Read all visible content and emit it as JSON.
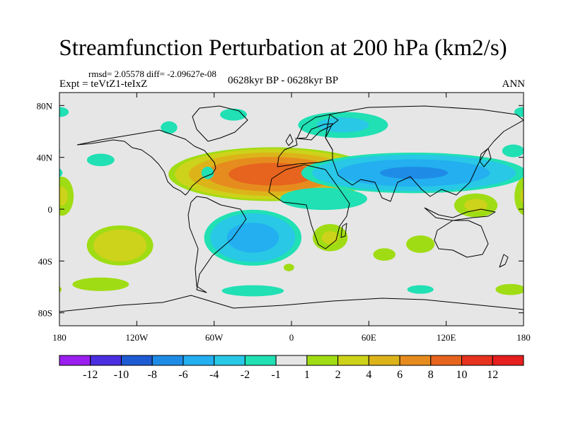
{
  "chart_data": {
    "type": "heatmap",
    "title": "Streamfunction Perturbation at 200 hPa (km2/s)",
    "stats": "rmsd= 2.05578 diff= -2.09627e-08",
    "experiment": "Expt = teVtZ1-teIxZ",
    "period": "0628kyr BP - 0628kyr BP",
    "season": "ANN",
    "x_range": [
      -180,
      180
    ],
    "y_range": [
      -90,
      90
    ],
    "x_ticks": [
      {
        "value": -180,
        "label": "180"
      },
      {
        "value": -120,
        "label": "120W"
      },
      {
        "value": -60,
        "label": "60W"
      },
      {
        "value": 0,
        "label": "0"
      },
      {
        "value": 60,
        "label": "60E"
      },
      {
        "value": 120,
        "label": "120E"
      },
      {
        "value": 180,
        "label": "180"
      }
    ],
    "y_ticks": [
      {
        "value": 80,
        "label": "80N"
      },
      {
        "value": 40,
        "label": "40N"
      },
      {
        "value": 0,
        "label": "0"
      },
      {
        "value": -40,
        "label": "40S"
      },
      {
        "value": -80,
        "label": "80S"
      }
    ],
    "colorbar": {
      "colors": [
        "#9a1ef0",
        "#4a2ee0",
        "#1e5ad2",
        "#1e8ce6",
        "#23aff0",
        "#28c8e6",
        "#20e0b4",
        "#e6e6e6",
        "#a0dc14",
        "#cdd21a",
        "#dcb41a",
        "#e68c1e",
        "#e6641e",
        "#e6321e",
        "#e61e1e"
      ],
      "labels": [
        "-12",
        "-10",
        "-8",
        "-6",
        "-4",
        "-2",
        "-1",
        "1",
        "2",
        "4",
        "6",
        "8",
        "10",
        "12"
      ]
    },
    "anomalies": [
      {
        "lon": -15,
        "lat": 27,
        "rlon": 85,
        "rlat": 22,
        "peak": 9.5
      },
      {
        "lon": 95,
        "lat": 28,
        "rlon": 95,
        "rlat": 17,
        "peak": -6.5
      },
      {
        "lon": 25,
        "lat": 8,
        "rlon": 55,
        "rlat": 14,
        "peak": -1.6
      },
      {
        "lon": 143,
        "lat": 3,
        "rlon": 22,
        "rlat": 12,
        "peak": 2.4
      },
      {
        "lon": 100,
        "lat": -27,
        "rlon": 18,
        "rlat": 11,
        "peak": 1.6
      },
      {
        "lon": 72,
        "lat": -35,
        "rlon": 18,
        "rlat": 10,
        "peak": 1.3
      },
      {
        "lon": 30,
        "lat": -22,
        "rlon": 18,
        "rlat": 14,
        "peak": 2.3
      },
      {
        "lon": -30,
        "lat": -22,
        "rlon": 42,
        "rlat": 24,
        "peak": -5.2
      },
      {
        "lon": -133,
        "lat": -28,
        "rlon": 30,
        "rlat": 18,
        "peak": 3.8
      },
      {
        "lon": -148,
        "lat": -58,
        "rlon": 38,
        "rlat": 9,
        "peak": 1.5
      },
      {
        "lon": -178,
        "lat": 10,
        "rlon": 12,
        "rlat": 20,
        "peak": 2.3
      },
      {
        "lon": 172,
        "lat": 45,
        "rlon": 14,
        "rlat": 8,
        "peak": -1.6
      },
      {
        "lon": 170,
        "lat": -62,
        "rlon": 22,
        "rlat": 8,
        "peak": 1.4
      },
      {
        "lon": 40,
        "lat": 65,
        "rlon": 45,
        "rlat": 13,
        "peak": -2.5
      },
      {
        "lon": -45,
        "lat": 73,
        "rlon": 18,
        "rlat": 8,
        "peak": -1.5
      },
      {
        "lon": -95,
        "lat": 63,
        "rlon": 12,
        "rlat": 9,
        "peak": -1.4
      },
      {
        "lon": -65,
        "lat": 28,
        "rlon": 10,
        "rlat": 10,
        "peak": -1.3
      },
      {
        "lon": -148,
        "lat": 38,
        "rlon": 20,
        "rlat": 9,
        "peak": -1.4
      },
      {
        "lon": -30,
        "lat": -63,
        "rlon": 45,
        "rlat": 8,
        "peak": -1.4
      },
      {
        "lon": 100,
        "lat": -62,
        "rlon": 25,
        "rlat": 8,
        "peak": -1.2
      },
      {
        "lon": -2,
        "lat": -45,
        "rlon": 10,
        "rlat": 7,
        "peak": 1.2
      },
      {
        "lon": -180,
        "lat": 75,
        "rlon": 15,
        "rlat": 8,
        "peak": -1.3
      }
    ]
  }
}
